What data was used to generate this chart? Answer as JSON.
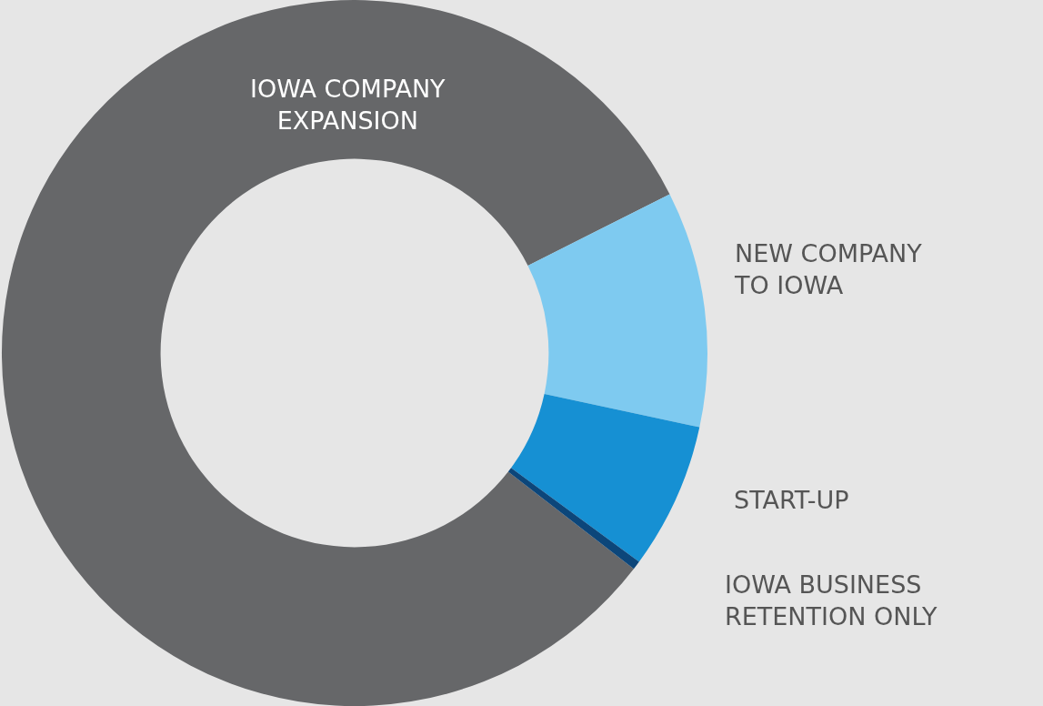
{
  "chart_data": {
    "type": "donut",
    "categories": [
      "IOWA COMPANY\nEXPANSION",
      "NEW COMPANY\nTO IOWA",
      "START-UP",
      "IOWA BUSINESS\nRETENTION ONLY"
    ],
    "values": [
      82.1,
      10.8,
      6.7,
      0.4
    ],
    "colors": [
      "#666769",
      "#7ecaf0",
      "#1690d3",
      "#0c467a"
    ]
  }
}
